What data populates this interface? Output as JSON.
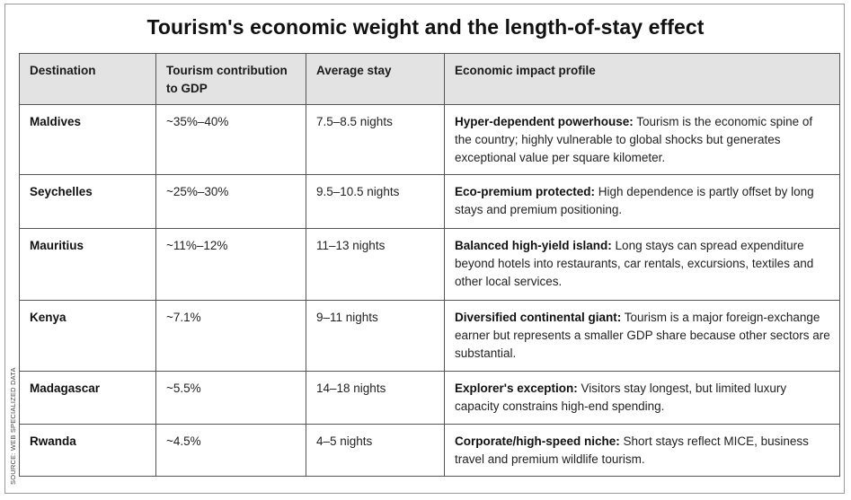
{
  "title": "Tourism's economic weight and the length-of-stay effect",
  "source": "SOURCE: WEB SPECIALIZED DATA",
  "table": {
    "headers": [
      "Destination",
      "Tourism contribution to GDP",
      "Average stay",
      "Economic impact profile"
    ],
    "rows": [
      {
        "destination": "Maldives",
        "gdp": "~35%–40%",
        "stay": "7.5–8.5 nights",
        "profile_lead": "Hyper-dependent powerhouse:",
        "profile_text": " Tourism is the economic spine of the country; highly vulnerable to global shocks but generates exceptional value per square kilometer."
      },
      {
        "destination": "Seychelles",
        "gdp": "~25%–30%",
        "stay": "9.5–10.5 nights",
        "profile_lead": "Eco-premium protected:",
        "profile_text": " High dependence is partly offset by long stays and premium positioning."
      },
      {
        "destination": "Mauritius",
        "gdp": "~11%–12%",
        "stay": "11–13 nights",
        "profile_lead": "Balanced high-yield island:",
        "profile_text": " Long stays can spread expenditure beyond hotels into restaurants, car rentals, excursions, textiles and other local services."
      },
      {
        "destination": "Kenya",
        "gdp": "~7.1%",
        "stay": "9–11 nights",
        "profile_lead": "Diversified continental giant:",
        "profile_text": " Tourism is a major foreign-exchange earner but represents a smaller GDP share because other sectors are substantial."
      },
      {
        "destination": "Madagascar",
        "gdp": "~5.5%",
        "stay": "14–18 nights",
        "profile_lead": "Explorer's exception:",
        "profile_text": " Visitors stay longest, but limited luxury capacity constrains high-end spending."
      },
      {
        "destination": "Rwanda",
        "gdp": "~4.5%",
        "stay": "4–5 nights",
        "profile_lead": "Corporate/high-speed niche:",
        "profile_text": " Short stays reflect MICE, business travel and premium wildlife tourism."
      }
    ]
  }
}
